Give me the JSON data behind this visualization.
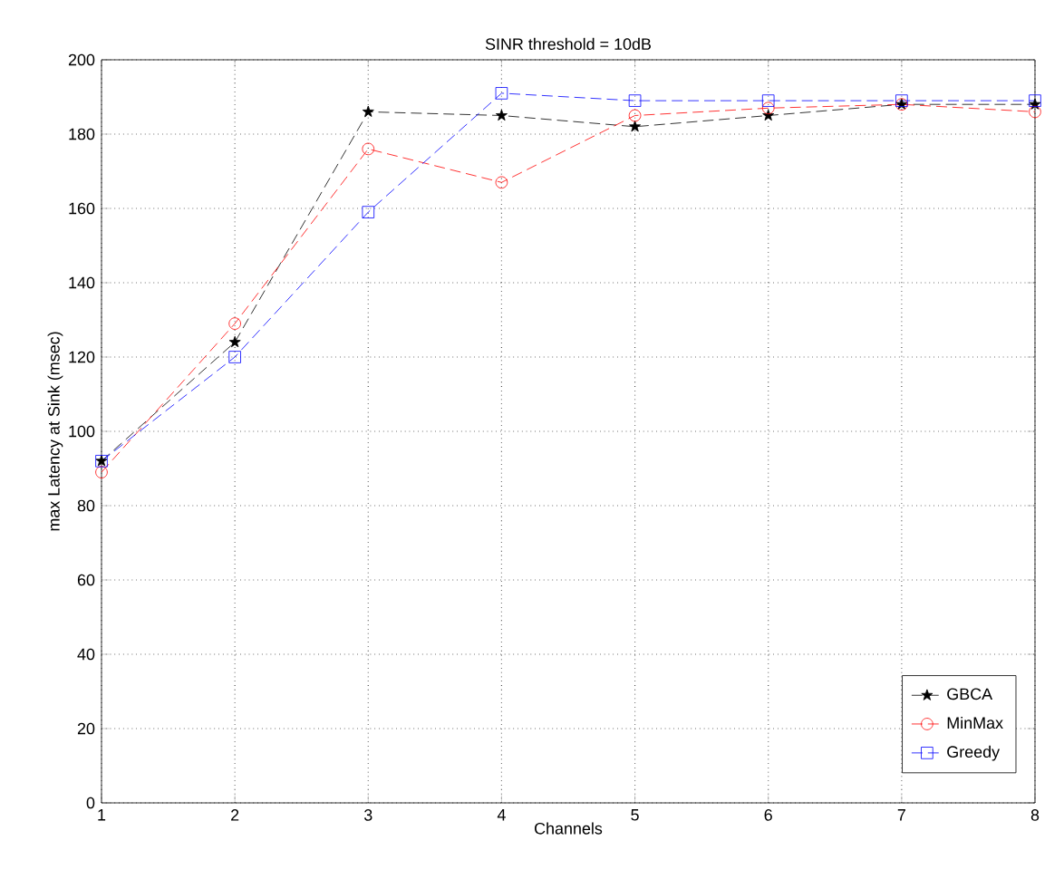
{
  "chart_data": {
    "type": "line",
    "title": "SINR threshold = 10dB",
    "xlabel": "Channels",
    "ylabel": "max Latency at Sink (msec)",
    "x": [
      1,
      2,
      3,
      4,
      5,
      6,
      7,
      8
    ],
    "xlim": [
      1,
      8
    ],
    "xticks": [
      1,
      2,
      3,
      4,
      5,
      6,
      7,
      8
    ],
    "ylim": [
      0,
      200
    ],
    "yticks": [
      0,
      20,
      40,
      60,
      80,
      100,
      120,
      140,
      160,
      180,
      200
    ],
    "grid": true,
    "legend": "bottom right",
    "line_style": "dashed",
    "series": [
      {
        "name": "GBCA",
        "color": "#000000",
        "marker": "star",
        "values": [
          92,
          124,
          186,
          185,
          182,
          185,
          188,
          188
        ]
      },
      {
        "name": "MinMax",
        "color": "#ff0000",
        "marker": "circle",
        "values": [
          89,
          129,
          176,
          167,
          185,
          187,
          188,
          186
        ]
      },
      {
        "name": "Greedy",
        "color": "#0000ff",
        "marker": "square",
        "values": [
          92,
          120,
          159,
          191,
          189,
          189,
          189,
          189
        ]
      }
    ]
  }
}
